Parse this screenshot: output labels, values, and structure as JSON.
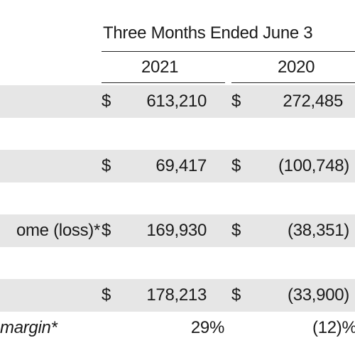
{
  "header": {
    "period": "Three Months Ended June 3",
    "year_a": "2021",
    "year_b": "2020"
  },
  "rows": [
    {
      "label": "",
      "cur_a": "$",
      "val_a": "613,210",
      "cur_b": "$",
      "val_b": "272,485"
    },
    {
      "label": "",
      "cur_a": "$",
      "val_a": "69,417",
      "cur_b": "$",
      "val_b": "(100,748)"
    },
    {
      "label": "ome (loss)*",
      "cur_a": "$",
      "val_a": "169,930",
      "cur_b": "$",
      "val_b": "(38,351)"
    },
    {
      "label": "",
      "cur_a": "$",
      "val_a": "178,213",
      "cur_b": "$",
      "val_b": "(33,900)"
    },
    {
      "label": "margin*",
      "cur_a": "",
      "val_a": "29%",
      "cur_b": "",
      "val_b": "(12)%"
    }
  ]
}
